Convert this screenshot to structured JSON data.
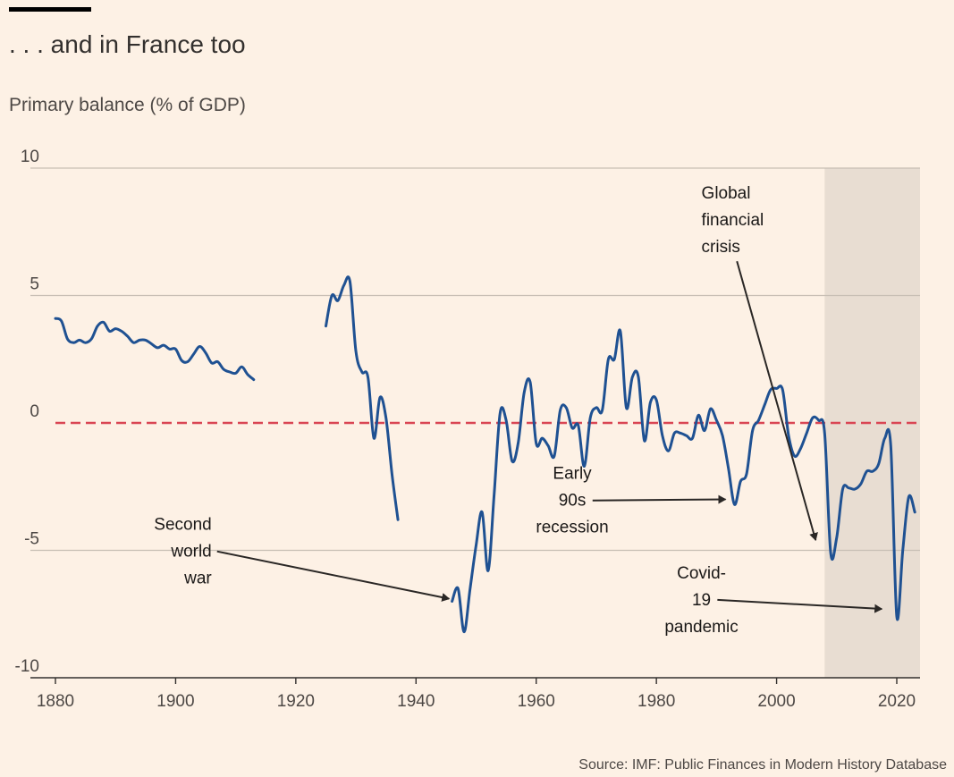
{
  "header": {
    "title": ". . . and in France too",
    "subtitle": "Primary balance (% of GDP)"
  },
  "footer": {
    "source": "Source: IMF: Public Finances in Modern History Database"
  },
  "colors": {
    "background": "#fdf1e5",
    "line": "#1f5192",
    "zero_line": "#d94553",
    "shade": "#e8ddd2",
    "grid": "#c8bfb5",
    "arrow": "#2a2725"
  },
  "chart_data": {
    "type": "line",
    "title": ". . . and in France too",
    "ylabel": "Primary balance (% of GDP)",
    "xlabel": "",
    "xlim": [
      1880,
      2024
    ],
    "ylim": [
      -10,
      10
    ],
    "x_ticks": [
      1880,
      1900,
      1920,
      1940,
      1960,
      1980,
      2000,
      2020
    ],
    "y_ticks": [
      10,
      5,
      0,
      -5,
      -10
    ],
    "reference_line": {
      "y": 0,
      "style": "dashed"
    },
    "shaded_region": {
      "x_start": 2008,
      "x_end": 2024
    },
    "series": [
      {
        "name": "Primary balance",
        "segments": [
          [
            [
              1880,
              4.1
            ],
            [
              1881,
              4.0
            ],
            [
              1882,
              3.3
            ],
            [
              1883,
              3.15
            ],
            [
              1884,
              3.25
            ],
            [
              1885,
              3.15
            ],
            [
              1886,
              3.3
            ],
            [
              1887,
              3.8
            ],
            [
              1888,
              3.95
            ],
            [
              1889,
              3.6
            ],
            [
              1890,
              3.7
            ],
            [
              1891,
              3.6
            ],
            [
              1892,
              3.4
            ],
            [
              1893,
              3.15
            ],
            [
              1894,
              3.25
            ],
            [
              1895,
              3.25
            ],
            [
              1896,
              3.1
            ],
            [
              1897,
              2.95
            ],
            [
              1898,
              3.05
            ],
            [
              1899,
              2.9
            ],
            [
              1900,
              2.9
            ],
            [
              1901,
              2.45
            ],
            [
              1902,
              2.4
            ],
            [
              1903,
              2.7
            ],
            [
              1904,
              3.0
            ],
            [
              1905,
              2.75
            ],
            [
              1906,
              2.35
            ],
            [
              1907,
              2.4
            ],
            [
              1908,
              2.1
            ],
            [
              1909,
              2.0
            ],
            [
              1910,
              1.95
            ],
            [
              1911,
              2.2
            ],
            [
              1912,
              1.9
            ],
            [
              1913,
              1.7
            ]
          ],
          [
            [
              1925,
              3.8
            ],
            [
              1926,
              5.0
            ],
            [
              1927,
              4.8
            ],
            [
              1928,
              5.4
            ],
            [
              1929,
              5.55
            ],
            [
              1930,
              2.8
            ],
            [
              1931,
              2.0
            ],
            [
              1932,
              1.8
            ],
            [
              1933,
              -0.6
            ],
            [
              1934,
              1.0
            ],
            [
              1935,
              0.2
            ],
            [
              1936,
              -2.0
            ],
            [
              1937,
              -3.8
            ]
          ],
          [
            [
              1946,
              -7.0
            ],
            [
              1947,
              -6.5
            ],
            [
              1948,
              -8.2
            ],
            [
              1949,
              -6.5
            ],
            [
              1950,
              -4.8
            ],
            [
              1951,
              -3.5
            ],
            [
              1952,
              -5.8
            ],
            [
              1953,
              -2.8
            ],
            [
              1954,
              0.4
            ],
            [
              1955,
              0.1
            ],
            [
              1956,
              -1.5
            ],
            [
              1957,
              -0.8
            ],
            [
              1958,
              1.2
            ],
            [
              1959,
              1.6
            ],
            [
              1960,
              -0.8
            ],
            [
              1961,
              -0.6
            ],
            [
              1962,
              -0.9
            ],
            [
              1963,
              -1.3
            ],
            [
              1964,
              0.5
            ],
            [
              1965,
              0.6
            ],
            [
              1966,
              -0.2
            ],
            [
              1967,
              -0.1
            ],
            [
              1968,
              -1.7
            ],
            [
              1969,
              0.2
            ],
            [
              1970,
              0.6
            ],
            [
              1971,
              0.5
            ],
            [
              1972,
              2.5
            ],
            [
              1973,
              2.5
            ],
            [
              1974,
              3.6
            ],
            [
              1975,
              0.6
            ],
            [
              1976,
              1.8
            ],
            [
              1977,
              1.8
            ],
            [
              1978,
              -0.7
            ],
            [
              1979,
              0.8
            ],
            [
              1980,
              0.9
            ],
            [
              1981,
              -0.5
            ],
            [
              1982,
              -1.1
            ],
            [
              1983,
              -0.4
            ],
            [
              1984,
              -0.4
            ],
            [
              1985,
              -0.5
            ],
            [
              1986,
              -0.6
            ],
            [
              1987,
              0.3
            ],
            [
              1988,
              -0.3
            ],
            [
              1989,
              0.55
            ],
            [
              1990,
              0.1
            ],
            [
              1991,
              -0.5
            ],
            [
              1992,
              -1.8
            ],
            [
              1993,
              -3.2
            ],
            [
              1994,
              -2.3
            ],
            [
              1995,
              -2.0
            ],
            [
              1996,
              -0.3
            ],
            [
              1997,
              0.1
            ],
            [
              1998,
              0.7
            ],
            [
              1999,
              1.3
            ],
            [
              2000,
              1.35
            ],
            [
              2001,
              1.3
            ],
            [
              2002,
              -0.5
            ],
            [
              2003,
              -1.3
            ],
            [
              2004,
              -1.0
            ],
            [
              2005,
              -0.4
            ],
            [
              2006,
              0.2
            ],
            [
              2007,
              0.1
            ],
            [
              2008,
              -0.4
            ],
            [
              2009,
              -5.1
            ],
            [
              2010,
              -4.5
            ],
            [
              2011,
              -2.6
            ],
            [
              2012,
              -2.55
            ],
            [
              2013,
              -2.6
            ],
            [
              2014,
              -2.4
            ],
            [
              2015,
              -1.9
            ],
            [
              2016,
              -1.9
            ],
            [
              2017,
              -1.6
            ],
            [
              2018,
              -0.6
            ],
            [
              2019,
              -0.9
            ],
            [
              2020,
              -7.6
            ],
            [
              2021,
              -5.0
            ],
            [
              2022,
              -2.9
            ],
            [
              2023,
              -3.5
            ]
          ]
        ]
      }
    ],
    "annotations": [
      {
        "lines": [
          "Second",
          "world",
          "war"
        ],
        "align": "right",
        "text_x": 1906,
        "text_y": -4.2,
        "arrow_to": [
          1945.5,
          -6.9
        ]
      },
      {
        "lines": [
          "Early",
          "90s",
          "recession"
        ],
        "align": "center",
        "text_x": 1966,
        "text_y": -2.2,
        "arrow_to": [
          1991.5,
          -3.0
        ]
      },
      {
        "lines": [
          "Global",
          "financial",
          "crisis"
        ],
        "align": "left",
        "text_x": 1987.5,
        "text_y": 8.8,
        "arrow_to": [
          2006.5,
          -4.6
        ]
      },
      {
        "lines": [
          "Covid-",
          "19",
          "pandemic"
        ],
        "align": "center",
        "text_x": 1987.5,
        "text_y": -6.1,
        "arrow_to": [
          2017.5,
          -7.3
        ]
      }
    ]
  }
}
